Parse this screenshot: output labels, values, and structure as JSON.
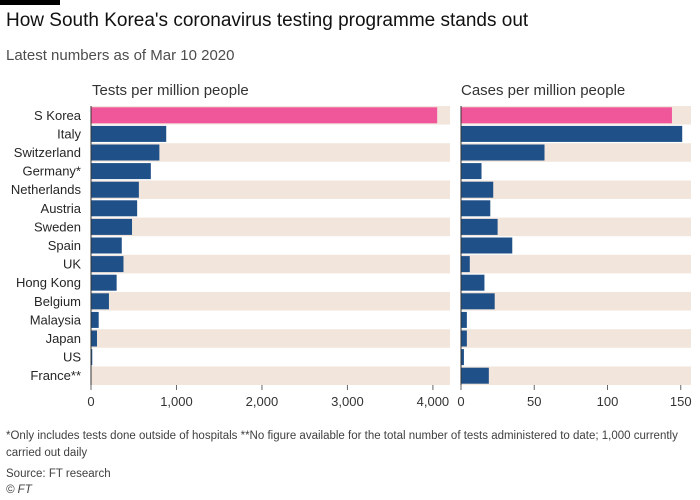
{
  "title": "How South Korea's coronavirus testing programme stands out",
  "subtitle": "Latest numbers as of Mar 10 2020",
  "footnote": "*Only includes tests done outside of hospitals **No figure available for the total number of tests administered to date; 1,000 currently carried out daily",
  "source": "Source: FT research",
  "copyright": "© FT",
  "colors": {
    "highlight": "#f0569a",
    "bar": "#1f5088",
    "band": "#f2e6dc",
    "axis": "#666666"
  },
  "chart_data": [
    {
      "type": "bar",
      "orientation": "horizontal",
      "title": "Tests per million people",
      "categories": [
        "S Korea",
        "Italy",
        "Switzerland",
        "Germany*",
        "Netherlands",
        "Austria",
        "Sweden",
        "Spain",
        "UK",
        "Hong Kong",
        "Belgium",
        "Malaysia",
        "Japan",
        "US",
        "France**"
      ],
      "values": [
        4050,
        880,
        800,
        700,
        560,
        540,
        480,
        360,
        380,
        300,
        210,
        90,
        70,
        15,
        null
      ],
      "xlim": [
        0,
        4200
      ],
      "xticks": [
        0,
        1000,
        2000,
        3000,
        4000
      ],
      "xtick_labels": [
        "0",
        "1,000",
        "2,000",
        "3,000",
        "4,000"
      ],
      "highlight": "S Korea",
      "alternating_bands": true
    },
    {
      "type": "bar",
      "orientation": "horizontal",
      "title": "Cases per million people",
      "categories": [
        "S Korea",
        "Italy",
        "Switzerland",
        "Germany*",
        "Netherlands",
        "Austria",
        "Sweden",
        "Spain",
        "UK",
        "Hong Kong",
        "Belgium",
        "Malaysia",
        "Japan",
        "US",
        "France**"
      ],
      "values": [
        144,
        151,
        57,
        14,
        22,
        20,
        25,
        35,
        6,
        16,
        23,
        4,
        4,
        2,
        19
      ],
      "xlim": [
        0,
        157
      ],
      "xticks": [
        0,
        50,
        100,
        150
      ],
      "xtick_labels": [
        "0",
        "50",
        "100",
        "150"
      ],
      "highlight": "S Korea",
      "alternating_bands": true
    }
  ]
}
